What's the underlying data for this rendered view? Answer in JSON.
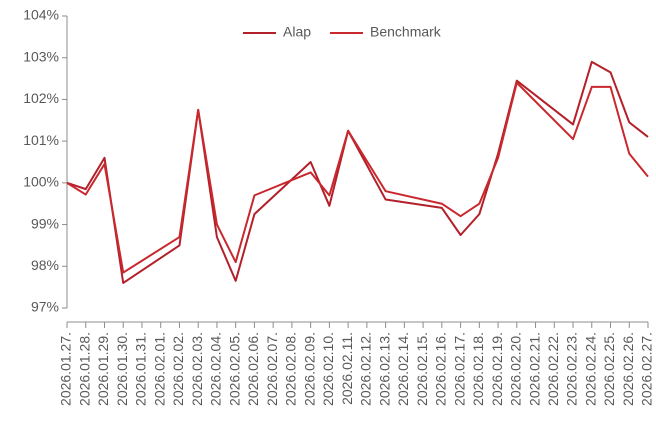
{
  "chart_data": {
    "type": "line",
    "x": [
      "2026.01.27.",
      "2026.01.28.",
      "2026.01.29.",
      "2026.01.30.",
      "2026.02.02.",
      "2026.02.03.",
      "2026.02.04.",
      "2026.02.05.",
      "2026.02.06.",
      "2026.02.09.",
      "2026.02.10.",
      "2026.02.11.",
      "2026.02.13.",
      "2026.02.16.",
      "2026.02.17.",
      "2026.02.18.",
      "2026.02.19.",
      "2026.02.20.",
      "2026.02.23.",
      "2026.02.24.",
      "2026.02.25.",
      "2026.02.26.",
      "2026.02.27."
    ],
    "xticks": [
      "2026.01.27.",
      "2026.01.28.",
      "2026.01.29.",
      "2026.01.30.",
      "2026.01.31.",
      "2026.02.01.",
      "2026.02.02.",
      "2026.02.03.",
      "2026.02.04.",
      "2026.02.05.",
      "2026.02.06.",
      "2026.02.07.",
      "2026.02.08.",
      "2026.02.09.",
      "2026.02.10.",
      "2026.02.11.",
      "2026.02.12.",
      "2026.02.13.",
      "2026.02.14.",
      "2026.02.15.",
      "2026.02.16.",
      "2026.02.17.",
      "2026.02.18.",
      "2026.02.19.",
      "2026.02.20.",
      "2026.02.21.",
      "2026.02.22.",
      "2026.02.23.",
      "2026.02.24.",
      "2026.02.25.",
      "2026.02.26.",
      "2026.02.27."
    ],
    "series": [
      {
        "name": "Alap",
        "color": "#b3202a",
        "values": [
          100.0,
          99.85,
          100.6,
          97.6,
          98.5,
          101.75,
          98.7,
          97.65,
          99.25,
          100.5,
          99.45,
          101.25,
          99.6,
          99.4,
          98.75,
          99.25,
          100.7,
          102.45,
          101.4,
          102.9,
          102.65,
          101.45,
          101.1
        ]
      },
      {
        "name": "Benchmark",
        "color": "#c8282e",
        "values": [
          100.0,
          99.72,
          100.45,
          97.85,
          98.7,
          101.75,
          99.0,
          98.1,
          99.7,
          100.25,
          99.7,
          101.25,
          99.8,
          99.5,
          99.2,
          99.5,
          100.6,
          102.4,
          101.05,
          102.3,
          102.3,
          100.7,
          100.15
        ]
      }
    ],
    "ylim": [
      97,
      104
    ],
    "yticks": [
      {
        "value": 97,
        "label": "97%"
      },
      {
        "value": 98,
        "label": "98%"
      },
      {
        "value": 99,
        "label": "99%"
      },
      {
        "value": 100,
        "label": "100%"
      },
      {
        "value": 101,
        "label": "101%"
      },
      {
        "value": 102,
        "label": "102%"
      },
      {
        "value": 103,
        "label": "103%"
      },
      {
        "value": 104,
        "label": "104%"
      }
    ],
    "legend": "top"
  }
}
